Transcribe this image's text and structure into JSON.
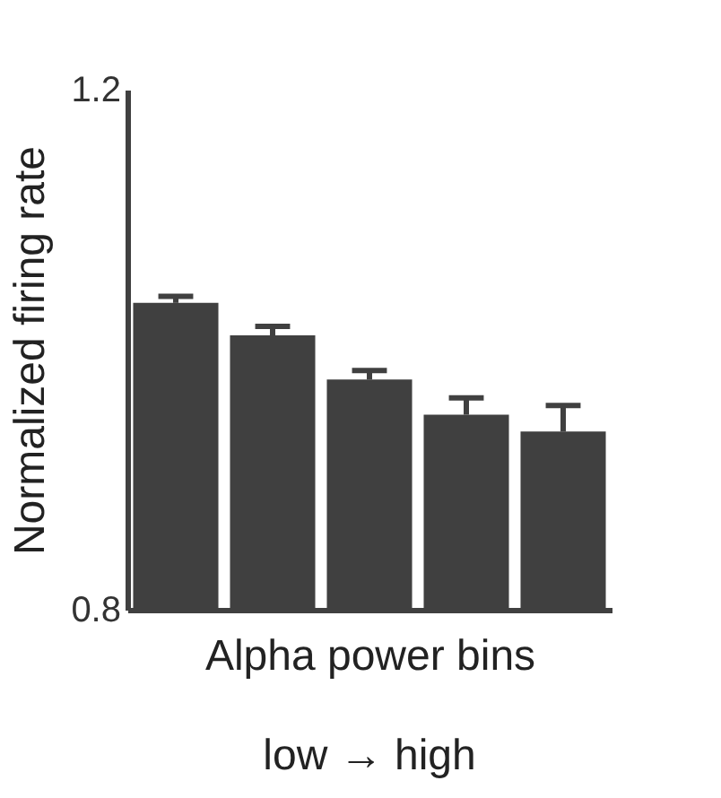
{
  "chart_data": {
    "type": "bar",
    "xlabel": "Alpha power bins",
    "ylabel": "Normalized firing rate",
    "categories": [
      null,
      null,
      null,
      null,
      null
    ],
    "values": [
      1.036,
      1.011,
      0.977,
      0.95,
      0.937
    ],
    "errors": [
      [
        1.036,
        1.041
      ],
      [
        1.011,
        1.018
      ],
      [
        0.977,
        0.984
      ],
      [
        0.95,
        0.963
      ],
      [
        0.937,
        0.957
      ]
    ],
    "color": "#404040",
    "ylim": [
      0.8,
      1.2
    ],
    "yticks": [
      {
        "value": 0.8,
        "label": "0.8"
      },
      {
        "value": 1.2,
        "label": "1.2"
      }
    ],
    "tick_labels": "y",
    "grid": false,
    "annotations": [
      "low → high"
    ]
  }
}
